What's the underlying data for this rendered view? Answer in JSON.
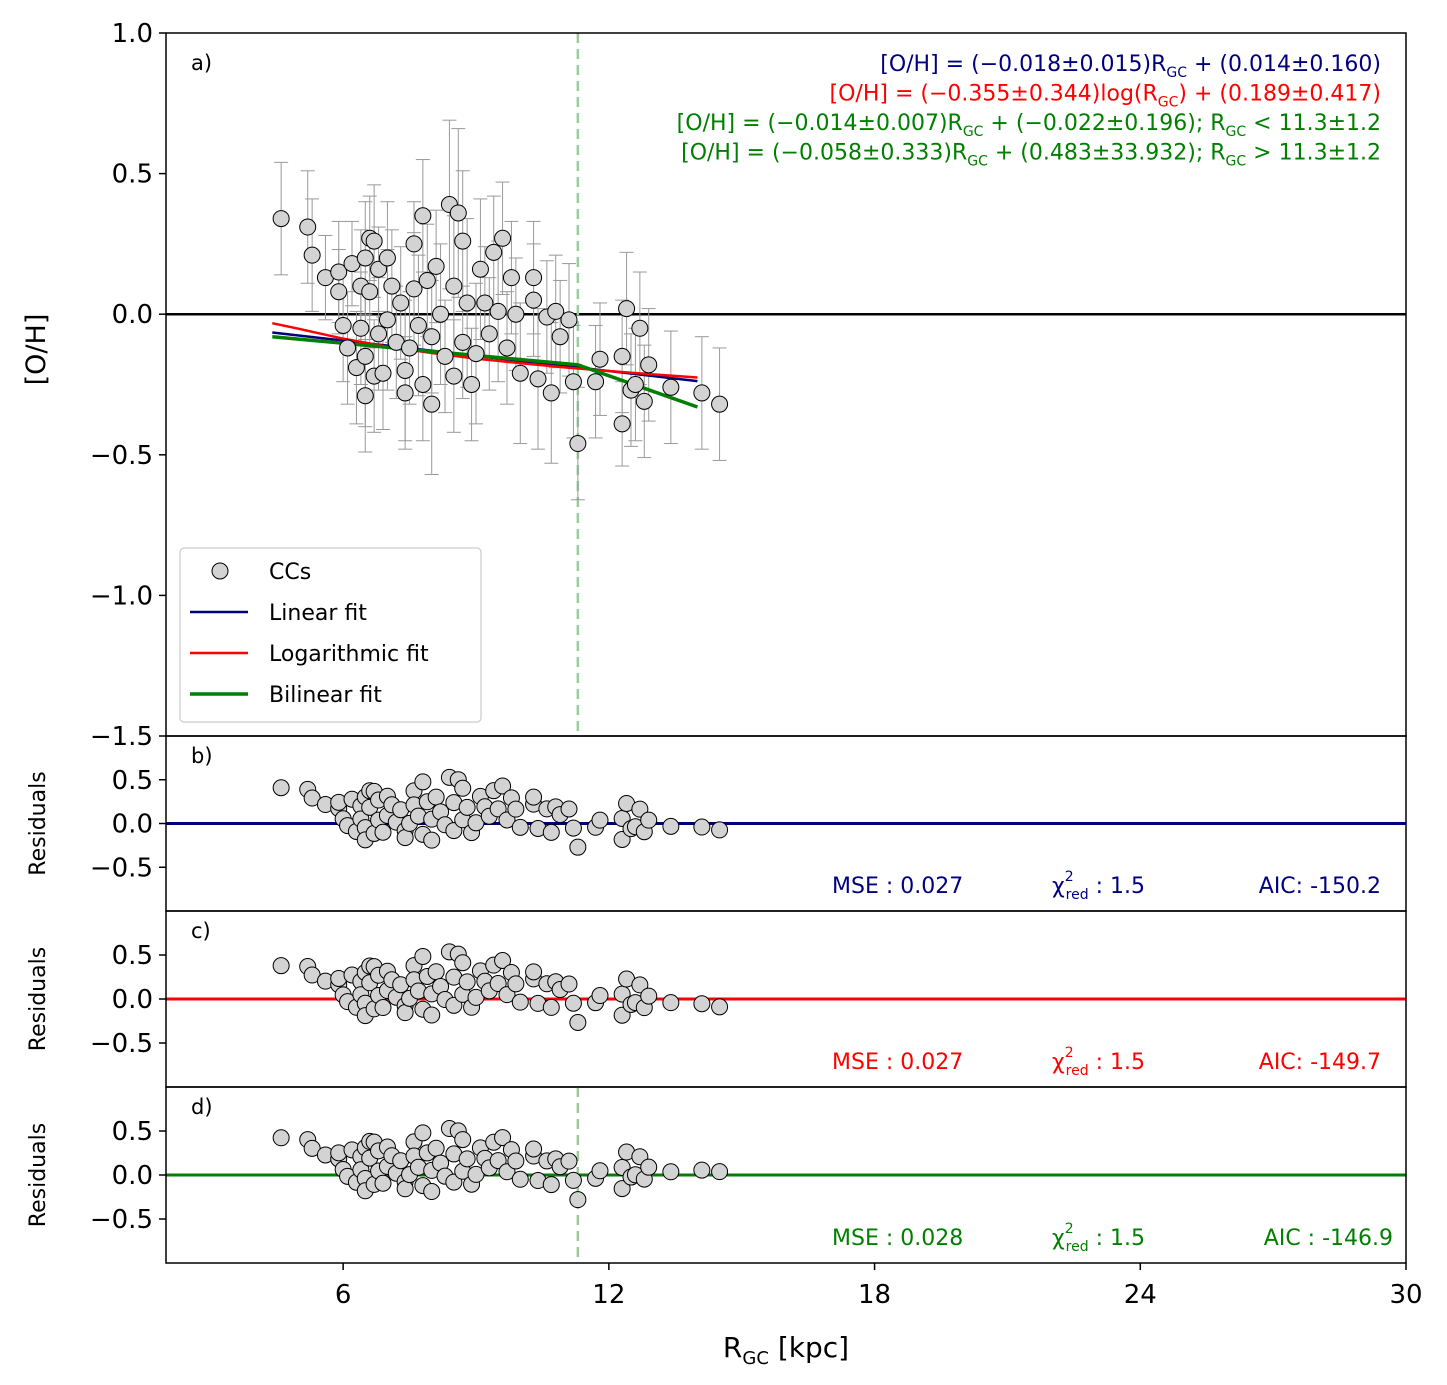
{
  "chart_data": {
    "type": "scatter",
    "xlabel": "R",
    "xlabel_sub": "GC",
    "xlabel_unit": " [kpc]",
    "xlim": [
      2,
      30
    ],
    "x_ticks": [
      "6",
      "12",
      "18",
      "24",
      "30"
    ],
    "x_tick_values": [
      6,
      12,
      18,
      24,
      30
    ],
    "break_radius": 11.3,
    "colors": {
      "linear": "#00007f",
      "log": "#ff0000",
      "bilinear": "#007f00",
      "points": "#d3d3d3",
      "errbar": "#999999",
      "vline": "#99cc99"
    },
    "top_panel": {
      "label": "a)",
      "ylabel": "[O/H]",
      "ylim": [
        -1.5,
        1.0
      ],
      "y_ticks": [
        "1.0",
        "0.5",
        "0.0",
        "−0.5",
        "−1.0",
        "−1.5"
      ],
      "y_tick_values": [
        1.0,
        0.5,
        0.0,
        -0.5,
        -1.0,
        -1.5
      ],
      "equations": [
        {
          "text": "[O/H] = (−0.018±0.015)R",
          "sub": "GC",
          "after": " + (0.014±0.160)",
          "color": "#00007f"
        },
        {
          "text": "[O/H] = (−0.355±0.344)log(R",
          "sub": "GC",
          "after": ") + (0.189±0.417)",
          "color": "#ff0000"
        },
        {
          "text": "[O/H] = (−0.014±0.007)R",
          "sub": "GC",
          "after": " + (−0.022±0.196);    R",
          "sub2": "GC",
          "after2": " < 11.3±1.2",
          "color": "#007f00"
        },
        {
          "text": "[O/H] = (−0.058±0.333)R",
          "sub": "GC",
          "after": " + (0.483±33.932);    R",
          "sub2": "GC",
          "after2": " > 11.3±1.2",
          "color": "#007f00"
        }
      ],
      "legend": [
        {
          "label": "CCs",
          "kind": "marker"
        },
        {
          "label": "Linear fit",
          "kind": "line",
          "color": "#00007f"
        },
        {
          "label": "Logarithmic fit",
          "kind": "line",
          "color": "#ff0000"
        },
        {
          "label": "Bilinear fit",
          "kind": "line",
          "color": "#007f00"
        }
      ],
      "legend_position": "lower-left",
      "fits": [
        {
          "name": "Linear fit",
          "x": [
            4.4,
            14.0
          ],
          "y": [
            -0.065,
            -0.238
          ],
          "color": "#00007f"
        },
        {
          "name": "Logarithmic fit",
          "x": [
            4.4,
            5,
            6,
            7,
            8,
            9,
            10,
            11,
            12,
            13,
            14.0
          ],
          "y": [
            -0.032,
            -0.052,
            -0.087,
            -0.116,
            -0.138,
            -0.158,
            -0.174,
            -0.189,
            -0.202,
            -0.214,
            -0.225
          ],
          "color": "#ff0000"
        },
        {
          "name": "Bilinear fit",
          "x": [
            4.4,
            11.3,
            14.0
          ],
          "y": [
            -0.08,
            -0.18,
            -0.33
          ],
          "color": "#007f00"
        }
      ],
      "points": [
        [
          4.6,
          0.34,
          0.2
        ],
        [
          5.2,
          0.31,
          0.2
        ],
        [
          5.3,
          0.21,
          0.2
        ],
        [
          5.6,
          0.13,
          0.15
        ],
        [
          5.9,
          0.08,
          0.15
        ],
        [
          5.9,
          0.15,
          0.18
        ],
        [
          6.0,
          -0.04,
          0.2
        ],
        [
          6.1,
          -0.12,
          0.2
        ],
        [
          6.2,
          0.18,
          0.15
        ],
        [
          6.3,
          -0.19,
          0.2
        ],
        [
          6.4,
          0.1,
          0.2
        ],
        [
          6.4,
          -0.05,
          0.2
        ],
        [
          6.5,
          0.2,
          0.2
        ],
        [
          6.5,
          -0.15,
          0.25
        ],
        [
          6.5,
          -0.29,
          0.2
        ],
        [
          6.6,
          0.27,
          0.15
        ],
        [
          6.6,
          0.08,
          0.2
        ],
        [
          6.7,
          0.26,
          0.2
        ],
        [
          6.7,
          -0.22,
          0.2
        ],
        [
          6.8,
          0.16,
          0.15
        ],
        [
          6.8,
          -0.07,
          0.2
        ],
        [
          6.9,
          -0.21,
          0.2
        ],
        [
          7.0,
          0.2,
          0.2
        ],
        [
          7.0,
          -0.02,
          0.25
        ],
        [
          7.1,
          0.1,
          0.2
        ],
        [
          7.2,
          -0.1,
          0.2
        ],
        [
          7.3,
          0.04,
          0.2
        ],
        [
          7.4,
          -0.2,
          0.25
        ],
        [
          7.4,
          -0.28,
          0.2
        ],
        [
          7.5,
          -0.12,
          0.2
        ],
        [
          7.6,
          0.25,
          0.15
        ],
        [
          7.6,
          0.09,
          0.2
        ],
        [
          7.7,
          -0.04,
          0.25
        ],
        [
          7.8,
          0.35,
          0.2
        ],
        [
          7.8,
          -0.25,
          0.2
        ],
        [
          7.9,
          0.12,
          0.2
        ],
        [
          8.0,
          -0.08,
          0.2
        ],
        [
          8.0,
          -0.32,
          0.25
        ],
        [
          8.1,
          0.17,
          0.2
        ],
        [
          8.2,
          0.0,
          0.25
        ],
        [
          8.3,
          -0.15,
          0.2
        ],
        [
          8.4,
          0.39,
          0.3
        ],
        [
          8.5,
          0.1,
          0.25
        ],
        [
          8.5,
          -0.22,
          0.2
        ],
        [
          8.6,
          0.36,
          0.3
        ],
        [
          8.7,
          0.26,
          0.25
        ],
        [
          8.7,
          -0.1,
          0.2
        ],
        [
          8.8,
          0.04,
          0.3
        ],
        [
          8.9,
          -0.25,
          0.2
        ],
        [
          9.0,
          -0.14,
          0.25
        ],
        [
          9.1,
          0.16,
          0.25
        ],
        [
          9.2,
          0.04,
          0.2
        ],
        [
          9.3,
          -0.07,
          0.2
        ],
        [
          9.4,
          0.22,
          0.2
        ],
        [
          9.5,
          0.01,
          0.25
        ],
        [
          9.6,
          0.27,
          0.2
        ],
        [
          9.7,
          -0.12,
          0.2
        ],
        [
          9.8,
          0.13,
          0.2
        ],
        [
          9.9,
          0.0,
          0.2
        ],
        [
          10.0,
          -0.21,
          0.25
        ],
        [
          10.3,
          0.05,
          0.2
        ],
        [
          10.3,
          0.13,
          0.2
        ],
        [
          10.4,
          -0.23,
          0.25
        ],
        [
          10.6,
          -0.01,
          0.2
        ],
        [
          10.7,
          -0.28,
          0.25
        ],
        [
          10.8,
          0.01,
          0.2
        ],
        [
          10.9,
          -0.08,
          0.2
        ],
        [
          11.1,
          -0.02,
          0.2
        ],
        [
          11.2,
          -0.24,
          0.2
        ],
        [
          11.3,
          -0.46,
          0.2
        ],
        [
          11.7,
          -0.24,
          0.2
        ],
        [
          11.8,
          -0.16,
          0.2
        ],
        [
          12.3,
          -0.15,
          0.2
        ],
        [
          12.3,
          -0.39,
          0.15
        ],
        [
          12.4,
          0.02,
          0.2
        ],
        [
          12.5,
          -0.27,
          0.2
        ],
        [
          12.6,
          -0.25,
          0.2
        ],
        [
          12.7,
          -0.05,
          0.2
        ],
        [
          12.8,
          -0.31,
          0.2
        ],
        [
          12.9,
          -0.18,
          0.2
        ],
        [
          13.4,
          -0.26,
          0.2
        ],
        [
          14.1,
          -0.28,
          0.2
        ],
        [
          14.5,
          -0.32,
          0.2
        ]
      ]
    },
    "residual_panels": [
      {
        "label": "b)",
        "ylabel": "Residuals",
        "ylim": [
          -1.0,
          1.0
        ],
        "y_ticks": [
          "0.5",
          "0.0",
          "−0.5"
        ],
        "y_tick_values": [
          0.5,
          0.0,
          -0.5
        ],
        "line_color": "#00007f",
        "mse_label": "MSE :  0.027",
        "chi_label": "χ",
        "chi_sup": "2",
        "chi_sub": "red",
        "chi_value": " :  1.5",
        "aic_label": "AIC: -150.2",
        "text_color": "#00007f",
        "fit_index": 0,
        "show_vline": false
      },
      {
        "label": "c)",
        "ylabel": "Residuals",
        "ylim": [
          -1.0,
          1.0
        ],
        "y_ticks": [
          "0.5",
          "0.0",
          "−0.5"
        ],
        "y_tick_values": [
          0.5,
          0.0,
          -0.5
        ],
        "line_color": "#ff0000",
        "mse_label": "MSE :  0.027",
        "chi_label": "χ",
        "chi_sup": "2",
        "chi_sub": "red",
        "chi_value": " :  1.5",
        "aic_label": "AIC: -149.7",
        "text_color": "#ff0000",
        "fit_index": 1,
        "show_vline": false
      },
      {
        "label": "d)",
        "ylabel": "Residuals",
        "ylim": [
          -1.0,
          1.0
        ],
        "y_ticks": [
          "0.5",
          "0.0",
          "−0.5"
        ],
        "y_tick_values": [
          0.5,
          0.0,
          -0.5
        ],
        "line_color": "#007f00",
        "mse_label": "MSE :  0.028",
        "chi_label": "χ",
        "chi_sup": "2",
        "chi_sub": "red",
        "chi_value": " :  1.5",
        "aic_label": "AIC :  -146.9",
        "text_color": "#007f00",
        "fit_index": 2,
        "show_vline": true
      }
    ]
  }
}
